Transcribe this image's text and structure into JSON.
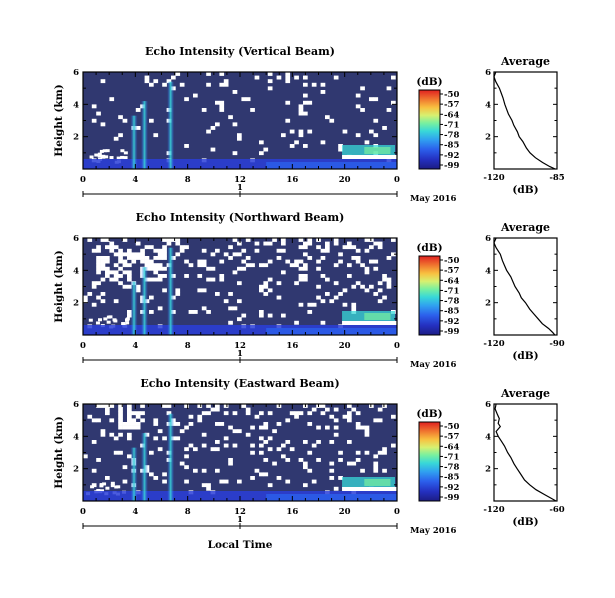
{
  "colors": {
    "background_fill": "#303870",
    "missing": "#ffffff",
    "colormap": [
      "#1c1c84",
      "#2430c0",
      "#2c60ec",
      "#30a0f0",
      "#38d8d8",
      "#78f0a0",
      "#d8f070",
      "#f8c040",
      "#f07830",
      "#e02020"
    ]
  },
  "figure": {
    "date_label": "May 2016",
    "xaxis_label": "Local Time",
    "colorbar_title": "(dB)",
    "colorbar_ticks": [
      "-50",
      "-57",
      "-64",
      "-71",
      "-78",
      "-85",
      "-92",
      "-99"
    ]
  },
  "chart_data": [
    {
      "type": "heatmap",
      "title": "Echo Intensity (Vertical Beam)",
      "ylabel": "Height (km)",
      "x_ticks": [
        "0",
        "4",
        "8",
        "12",
        "16",
        "20",
        "0"
      ],
      "x_range": [
        0,
        24
      ],
      "y_ticks": [
        "2",
        "4",
        "6"
      ],
      "y_range": [
        0,
        6
      ],
      "day_tick": "1",
      "zlim": [
        -99,
        -50
      ],
      "profile": {
        "title": "Average",
        "xlabel": "(dB)",
        "x_ticks": [
          "-120",
          "-85"
        ],
        "x_range": [
          -120,
          -85
        ],
        "y_ticks": [
          "2",
          "4",
          "6"
        ],
        "points": [
          [
            -119,
            6.0
          ],
          [
            -120,
            5.7
          ],
          [
            -119,
            5.4
          ],
          [
            -117,
            5.0
          ],
          [
            -116,
            4.7
          ],
          [
            -115,
            4.4
          ],
          [
            -114,
            4.0
          ],
          [
            -113,
            3.7
          ],
          [
            -112,
            3.4
          ],
          [
            -110,
            3.0
          ],
          [
            -109,
            2.7
          ],
          [
            -107,
            2.3
          ],
          [
            -106,
            2.0
          ],
          [
            -104,
            1.7
          ],
          [
            -102,
            1.3
          ],
          [
            -100,
            1.0
          ],
          [
            -97,
            0.7
          ],
          [
            -93,
            0.4
          ],
          [
            -89,
            0.15
          ],
          [
            -86,
            0.0
          ]
        ]
      }
    },
    {
      "type": "heatmap",
      "title": "Echo Intensity (Northward Beam)",
      "ylabel": "Height (km)",
      "x_ticks": [
        "0",
        "4",
        "8",
        "12",
        "16",
        "20",
        "0"
      ],
      "x_range": [
        0,
        24
      ],
      "y_ticks": [
        "2",
        "4",
        "6"
      ],
      "y_range": [
        0,
        6
      ],
      "day_tick": "1",
      "zlim": [
        -99,
        -50
      ],
      "profile": {
        "title": "Average",
        "xlabel": "(dB)",
        "x_ticks": [
          "-120",
          "-90"
        ],
        "x_range": [
          -120,
          -90
        ],
        "y_ticks": [
          "2",
          "4",
          "6"
        ],
        "points": [
          [
            -119,
            6.0
          ],
          [
            -120,
            5.7
          ],
          [
            -119,
            5.4
          ],
          [
            -117,
            5.0
          ],
          [
            -116,
            4.6
          ],
          [
            -115,
            4.3
          ],
          [
            -114,
            4.0
          ],
          [
            -112,
            3.6
          ],
          [
            -111,
            3.3
          ],
          [
            -110,
            3.0
          ],
          [
            -108,
            2.6
          ],
          [
            -107,
            2.3
          ],
          [
            -105,
            2.0
          ],
          [
            -103,
            1.6
          ],
          [
            -101,
            1.3
          ],
          [
            -99,
            1.0
          ],
          [
            -97,
            0.7
          ],
          [
            -94,
            0.4
          ],
          [
            -92,
            0.15
          ],
          [
            -91,
            0.0
          ]
        ]
      }
    },
    {
      "type": "heatmap",
      "title": "Echo Intensity (Eastward Beam)",
      "ylabel": "Height (km)",
      "x_ticks": [
        "0",
        "4",
        "8",
        "12",
        "16",
        "20",
        "0"
      ],
      "x_range": [
        0,
        24
      ],
      "y_ticks": [
        "2",
        "4",
        "6"
      ],
      "y_range": [
        0,
        6
      ],
      "day_tick": "1",
      "zlim": [
        -99,
        -50
      ],
      "profile": {
        "title": "Average",
        "xlabel": "(dB)",
        "x_ticks": [
          "-120",
          "-60"
        ],
        "x_range": [
          -120,
          -60
        ],
        "y_ticks": [
          "2",
          "4",
          "6"
        ],
        "points": [
          [
            -118,
            6.0
          ],
          [
            -119,
            5.7
          ],
          [
            -117,
            5.4
          ],
          [
            -115,
            5.1
          ],
          [
            -116,
            4.8
          ],
          [
            -114,
            4.6
          ],
          [
            -118,
            4.3
          ],
          [
            -116,
            4.0
          ],
          [
            -113,
            3.7
          ],
          [
            -110,
            3.4
          ],
          [
            -107,
            3.0
          ],
          [
            -104,
            2.7
          ],
          [
            -101,
            2.3
          ],
          [
            -98,
            2.0
          ],
          [
            -95,
            1.7
          ],
          [
            -91,
            1.3
          ],
          [
            -86,
            1.0
          ],
          [
            -80,
            0.7
          ],
          [
            -72,
            0.4
          ],
          [
            -65,
            0.15
          ],
          [
            -61,
            0.0
          ]
        ]
      }
    }
  ]
}
